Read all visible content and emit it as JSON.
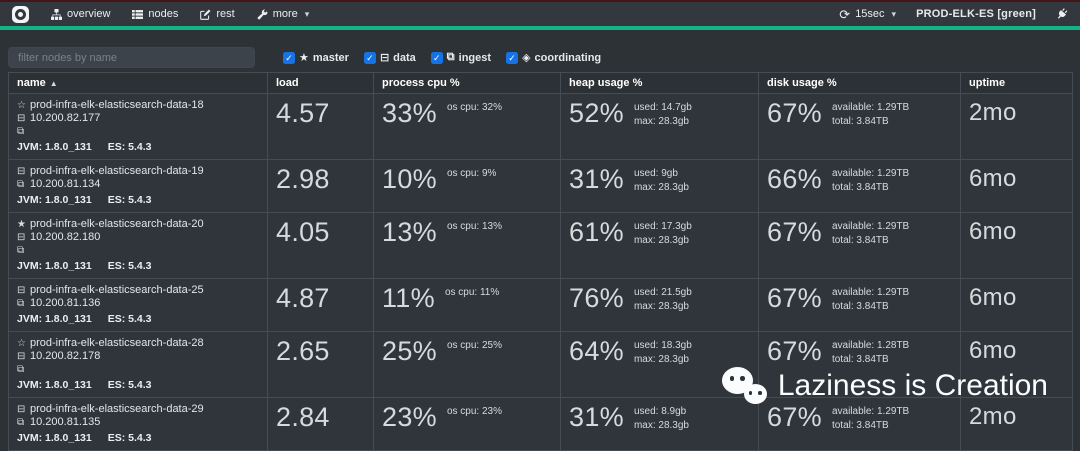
{
  "navbar": {
    "items": [
      {
        "label": "overview",
        "icon": "sitemap-icon"
      },
      {
        "label": "nodes",
        "icon": "table-icon"
      },
      {
        "label": "rest",
        "icon": "edit-icon"
      },
      {
        "label": "more",
        "icon": "wrench-icon"
      }
    ],
    "refresh_label": "15sec",
    "cluster_name": "PROD-ELK-ES [green]",
    "cluster_status_color": "#15b287"
  },
  "filter": {
    "placeholder": "filter nodes by name",
    "checkboxes": [
      {
        "label": "master",
        "icon": "star-icon",
        "glyph": "★",
        "checked": true
      },
      {
        "label": "data",
        "icon": "hdd-icon",
        "glyph": "⊟",
        "checked": true
      },
      {
        "label": "ingest",
        "icon": "crop-icon",
        "glyph": "⧉",
        "checked": true
      },
      {
        "label": "coordinating",
        "icon": "coordinating-icon",
        "glyph": "◈",
        "checked": true
      }
    ]
  },
  "icons": {
    "master_current": "★",
    "master_eligible": "☆",
    "data_node": "⊟",
    "ingest": "⧉",
    "check": "✓",
    "refresh": "⟳",
    "caret": "▾",
    "sort_asc": "▲"
  },
  "table": {
    "columns": [
      "name",
      "load",
      "process cpu %",
      "heap usage %",
      "disk usage %",
      "uptime"
    ],
    "sorted_column": "name",
    "rows": [
      {
        "master": "eligible",
        "name": "prod-infra-elk-elasticsearch-data-18",
        "ip": "10.200.82.177",
        "ingest": true,
        "jvm": "JVM: 1.8.0_131",
        "es": "ES: 5.4.3",
        "load": "4.57",
        "cpu": "33%",
        "cpu_note": "os cpu: 32%",
        "heap": "52%",
        "heap_used": "used: 14.7gb",
        "heap_max": "max: 28.3gb",
        "disk": "67%",
        "disk_available": "available: 1.29TB",
        "disk_total": "total: 3.84TB",
        "uptime": "2mo"
      },
      {
        "master": null,
        "name": "prod-infra-elk-elasticsearch-data-19",
        "ip": "10.200.81.134",
        "ingest": true,
        "jvm": "JVM: 1.8.0_131",
        "es": "ES: 5.4.3",
        "load": "2.98",
        "cpu": "10%",
        "cpu_note": "os cpu: 9%",
        "heap": "31%",
        "heap_used": "used: 9gb",
        "heap_max": "max: 28.3gb",
        "disk": "66%",
        "disk_available": "available: 1.29TB",
        "disk_total": "total: 3.84TB",
        "uptime": "6mo"
      },
      {
        "master": "current",
        "name": "prod-infra-elk-elasticsearch-data-20",
        "ip": "10.200.82.180",
        "ingest": true,
        "jvm": "JVM: 1.8.0_131",
        "es": "ES: 5.4.3",
        "load": "4.05",
        "cpu": "13%",
        "cpu_note": "os cpu: 13%",
        "heap": "61%",
        "heap_used": "used: 17.3gb",
        "heap_max": "max: 28.3gb",
        "disk": "67%",
        "disk_available": "available: 1.29TB",
        "disk_total": "total: 3.84TB",
        "uptime": "6mo"
      },
      {
        "master": null,
        "name": "prod-infra-elk-elasticsearch-data-25",
        "ip": "10.200.81.136",
        "ingest": true,
        "jvm": "JVM: 1.8.0_131",
        "es": "ES: 5.4.3",
        "load": "4.87",
        "cpu": "11%",
        "cpu_note": "os cpu: 11%",
        "heap": "76%",
        "heap_used": "used: 21.5gb",
        "heap_max": "max: 28.3gb",
        "disk": "67%",
        "disk_available": "available: 1.29TB",
        "disk_total": "total: 3.84TB",
        "uptime": "6mo"
      },
      {
        "master": "eligible",
        "name": "prod-infra-elk-elasticsearch-data-28",
        "ip": "10.200.82.178",
        "ingest": true,
        "jvm": "JVM: 1.8.0_131",
        "es": "ES: 5.4.3",
        "load": "2.65",
        "cpu": "25%",
        "cpu_note": "os cpu: 25%",
        "heap": "64%",
        "heap_used": "used: 18.3gb",
        "heap_max": "max: 28.3gb",
        "disk": "67%",
        "disk_available": "available: 1.28TB",
        "disk_total": "total: 3.84TB",
        "uptime": "6mo"
      },
      {
        "master": null,
        "name": "prod-infra-elk-elasticsearch-data-29",
        "ip": "10.200.81.135",
        "ingest": true,
        "jvm": "JVM: 1.8.0_131",
        "es": "ES: 5.4.3",
        "load": "2.84",
        "cpu": "23%",
        "cpu_note": "os cpu: 23%",
        "heap": "31%",
        "heap_used": "used: 8.9gb",
        "heap_max": "max: 28.3gb",
        "disk": "67%",
        "disk_available": "available: 1.29TB",
        "disk_total": "total: 3.84TB",
        "uptime": "2mo"
      }
    ]
  },
  "watermark": {
    "text": "Laziness is Creation"
  }
}
